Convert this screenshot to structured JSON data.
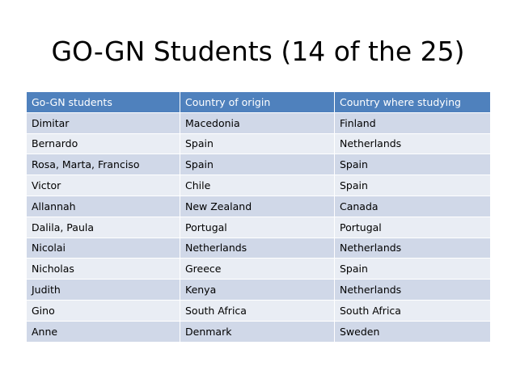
{
  "title": "GO-GN Students (14 of the 25)",
  "table": {
    "columns": [
      "Go-GN students",
      "Country of origin",
      "Country where studying"
    ],
    "rows": [
      [
        "Dimitar",
        "Macedonia",
        "Finland"
      ],
      [
        "Bernardo",
        "Spain",
        "Netherlands"
      ],
      [
        "Rosa, Marta, Franciso",
        "Spain",
        "Spain"
      ],
      [
        "Victor",
        "Chile",
        "Spain"
      ],
      [
        "Allannah",
        "New Zealand",
        "Canada"
      ],
      [
        "Dalila, Paula",
        "Portugal",
        "Portugal"
      ],
      [
        "Nicolai",
        "Netherlands",
        "Netherlands"
      ],
      [
        "Nicholas",
        "Greece",
        "Spain"
      ],
      [
        "Judith",
        "Kenya",
        "Netherlands"
      ],
      [
        "Gino",
        "South Africa",
        "South Africa"
      ],
      [
        "Anne",
        "Denmark",
        "Sweden"
      ]
    ]
  }
}
